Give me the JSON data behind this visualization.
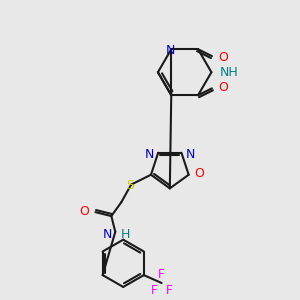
{
  "background_color": "#e8e8e8",
  "bond_color": "#1a1a1a",
  "colors": {
    "O": "#ff0000",
    "N": "#0000cc",
    "S": "#cccc00",
    "F": "#ff00ff",
    "H": "#008080",
    "C": "#1a1a1a"
  },
  "figsize": [
    3.0,
    3.0
  ],
  "dpi": 100
}
